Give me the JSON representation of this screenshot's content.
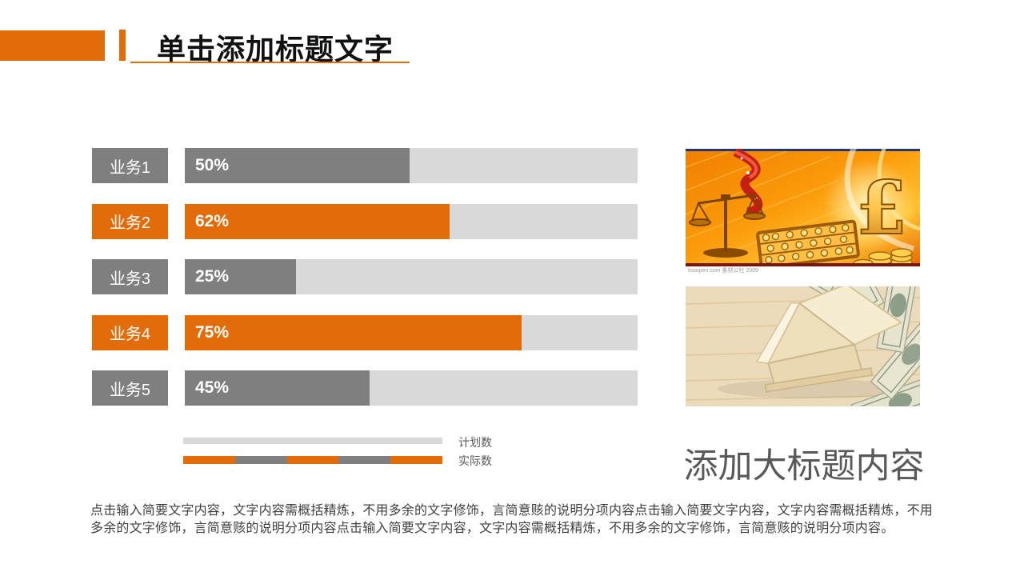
{
  "header": {
    "title": "单击添加标题文字"
  },
  "chart_data": {
    "type": "bar",
    "orientation": "horizontal",
    "title": "",
    "xlabel": "",
    "ylabel": "",
    "xlim": [
      0,
      100
    ],
    "unit": "%",
    "grid": false,
    "categories": [
      "业务1",
      "业务2",
      "业务3",
      "业务4",
      "业务5"
    ],
    "values": [
      50,
      62,
      25,
      75,
      45
    ],
    "rows": [
      {
        "label": "业务1",
        "value": 50,
        "value_label": "50%",
        "fill_pct": 49.6,
        "color": "gray"
      },
      {
        "label": "业务2",
        "value": 62,
        "value_label": "62%",
        "fill_pct": 58.5,
        "color": "orange"
      },
      {
        "label": "业务3",
        "value": 25,
        "value_label": "25%",
        "fill_pct": 24.5,
        "color": "gray"
      },
      {
        "label": "业务4",
        "value": 75,
        "value_label": "75%",
        "fill_pct": 74.4,
        "color": "orange"
      },
      {
        "label": "业务5",
        "value": 45,
        "value_label": "45%",
        "fill_pct": 40.8,
        "color": "gray"
      }
    ],
    "legend_position": "bottom",
    "legend": {
      "plan_label": "计划数",
      "actual_label": "实际数",
      "actual_segments": [
        "orange",
        "gray",
        "orange",
        "gray",
        "orange"
      ]
    }
  },
  "right_panel": {
    "big_title": "添加大标题内容",
    "image1_subject": "golden finance scene: balance scale, red ribbon, abacus, pound sign, gold coins",
    "image1_watermark": "tooopen.com 素材公社 2009",
    "image2_subject": "wooden toy house standing on fanned US dollar bills"
  },
  "body": {
    "lines": [
      "点击输入简要文字内容，文字内容需概括精炼，不用多余的文字修饰，言简意赅的说明分项内容点击输入简要文字内容，文字内容需概括精炼，不用",
      "多余的文字修饰，言简意赅的说明分项内容点击输入简要文字内容，文字内容需概括精炼，不用多余的文字修饰，言简意赅的说明分项内容。"
    ]
  },
  "colors": {
    "accent_orange": "#e36c0a",
    "bar_gray": "#7f7f7f",
    "track_gray": "#d9d9d9",
    "title_black": "#111111",
    "big_title_gray": "#595959",
    "body_text": "#404040"
  }
}
